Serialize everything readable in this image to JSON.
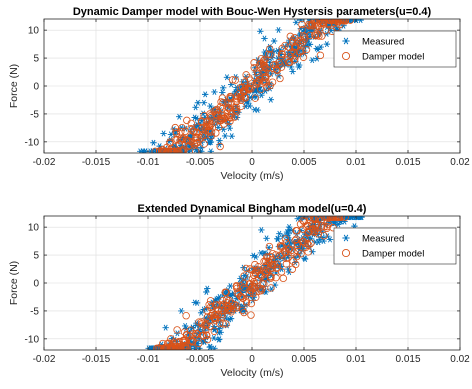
{
  "colors": {
    "measured": "#0072BD",
    "model": "#D95319",
    "grid": "#dddddd",
    "axis": "#262626"
  },
  "chart_data": [
    {
      "type": "scatter",
      "title": "Dynamic Damper model with Bouc-Wen Hystersis parameters(u=0.4)",
      "xlabel": "Velocity (m/s)",
      "ylabel": "Force (N)",
      "xlim": [
        -0.02,
        0.02
      ],
      "ylim": [
        -12,
        12
      ],
      "xticks": [
        -0.02,
        -0.015,
        -0.01,
        -0.005,
        0,
        0.005,
        0.01,
        0.015,
        0.02
      ],
      "xticklabels": [
        "-0.02",
        "-0.015",
        "-0.01",
        "-0.005",
        "0",
        "0.005",
        "0.01",
        "0.015",
        "0.02"
      ],
      "yticks": [
        -10,
        -5,
        0,
        5,
        10
      ],
      "yticklabels": [
        "-10",
        "-5",
        "0",
        "5",
        "10"
      ],
      "grid": true,
      "legend_position": "top-right",
      "series": [
        {
          "name": "Measured",
          "marker": "asterisk",
          "color": "#0072BD",
          "trend": {
            "slope": 1700,
            "x_range": [
              -0.0095,
              0.0095
            ],
            "spread_x": 0.0022,
            "spread_y": 1.8,
            "count": 460
          },
          "x": [
            -0.0085,
            -0.0088,
            -0.0075,
            -0.007,
            -0.0052,
            -0.0045,
            -0.006,
            0.0008,
            0.0012,
            0.0036,
            0.0055,
            0.0072,
            0.0082,
            0.0088,
            0.0091
          ],
          "y": [
            -8.5,
            -11.2,
            -10.8,
            -5.5,
            -3.0,
            -1.5,
            -9.2,
            9.8,
            8.5,
            8.2,
            11.5,
            7.5,
            10.2,
            10.8,
            8.3
          ]
        },
        {
          "name": "Damper model",
          "marker": "circle",
          "color": "#D95319",
          "trend": {
            "slope": 1650,
            "x_range": [
              -0.0085,
              0.0085
            ],
            "spread_x": 0.0016,
            "spread_y": 1.4,
            "count": 300
          },
          "x": [
            -0.0082,
            -0.0079,
            -0.0073,
            -0.0066,
            -0.0052,
            0.0048,
            0.0057,
            0.0066,
            0.0071,
            0.0077
          ],
          "y": [
            -11.0,
            -10.3,
            -8.2,
            -11.4,
            -7.4,
            11.0,
            10.8,
            11.2,
            10.0,
            9.8
          ]
        }
      ]
    },
    {
      "type": "scatter",
      "title": "Extended Dynamical Bingham model(u=0.4)",
      "xlabel": "Velocity (m/s)",
      "ylabel": "Force (N)",
      "xlim": [
        -0.02,
        0.02
      ],
      "ylim": [
        -12,
        12
      ],
      "xticks": [
        -0.02,
        -0.015,
        -0.01,
        -0.005,
        0,
        0.005,
        0.01,
        0.015,
        0.02
      ],
      "xticklabels": [
        "-0.02",
        "-0.015",
        "-0.01",
        "-0.005",
        "0",
        "0.005",
        "0.01",
        "0.015",
        "0.02"
      ],
      "yticks": [
        -10,
        -5,
        0,
        5,
        10
      ],
      "yticklabels": [
        "-10",
        "-5",
        "0",
        "5",
        "10"
      ],
      "grid": true,
      "legend_position": "top-right",
      "series": [
        {
          "name": "Measured",
          "marker": "asterisk",
          "color": "#0072BD",
          "trend": {
            "slope": 1700,
            "x_range": [
              -0.0095,
              0.0095
            ],
            "spread_x": 0.0022,
            "spread_y": 1.8,
            "count": 460
          },
          "x": [
            -0.0087,
            -0.0083,
            -0.0072,
            -0.0068,
            -0.0055,
            -0.0043,
            0.0009,
            0.0014,
            0.0034,
            0.0058,
            0.0075,
            0.0083,
            0.0089,
            0.0092
          ],
          "y": [
            -11.0,
            -8.0,
            -10.5,
            -5.0,
            -3.5,
            -1.0,
            9.5,
            8.0,
            8.5,
            11.8,
            7.8,
            10.5,
            11.0,
            8.8
          ]
        },
        {
          "name": "Damper model",
          "marker": "circle",
          "color": "#D95319",
          "trend": {
            "slope": 1650,
            "x_range": [
              -0.0085,
              0.0085
            ],
            "spread_x": 0.0016,
            "spread_y": 1.4,
            "count": 300
          },
          "x": [
            -0.0081,
            -0.0078,
            -0.0072,
            -0.0064,
            -0.0051,
            0.0049,
            0.0058,
            0.0067,
            0.0072,
            0.0078
          ],
          "y": [
            -10.8,
            -10.0,
            -8.4,
            -11.2,
            -7.0,
            11.2,
            10.6,
            11.4,
            9.8,
            9.9
          ]
        }
      ]
    }
  ]
}
